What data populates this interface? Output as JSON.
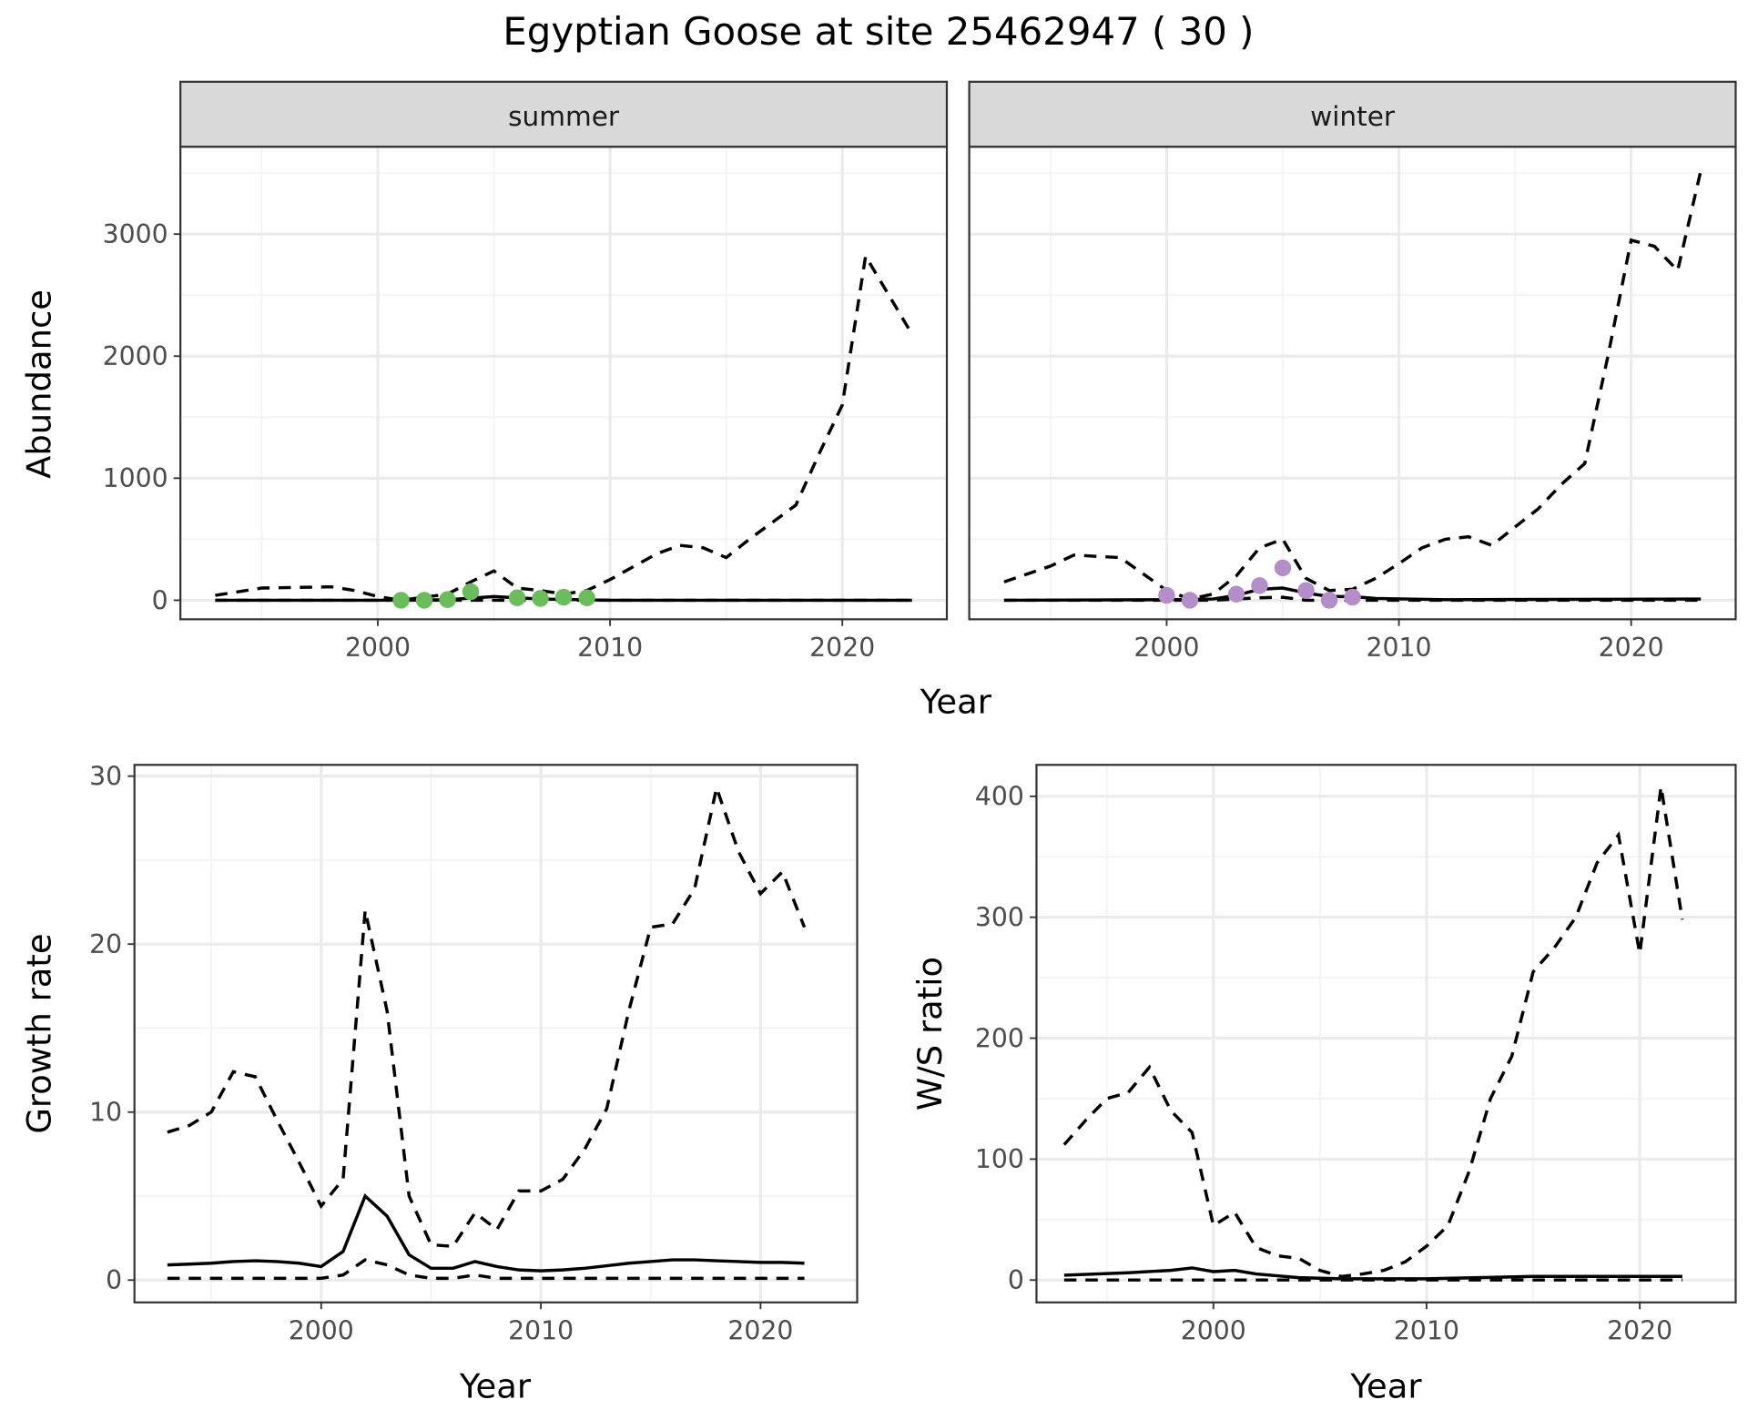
{
  "title": "Egyptian Goose at site 25462947 ( 30 )",
  "chart_data": [
    {
      "type": "line",
      "facet": "summer",
      "xlabel": "Year",
      "ylabel": "Abundance",
      "xlim": [
        1991.5,
        2024.5
      ],
      "ylim": [
        -156,
        3716
      ],
      "xticks": [
        2000,
        2010,
        2020
      ],
      "yticks": [
        0,
        1000,
        2000,
        3000
      ],
      "grid": true,
      "point_color": "#6abd5a",
      "upper": {
        "x": [
          1993,
          1995,
          1998,
          1999,
          2000,
          2001,
          2003,
          2004,
          2005,
          2006,
          2007,
          2008,
          2009,
          2010,
          2012,
          2013,
          2014,
          2015,
          2016,
          2018,
          2019,
          2020,
          2021,
          2022,
          2023
        ],
        "y": [
          40,
          100,
          110,
          80,
          30,
          0,
          50,
          150,
          240,
          100,
          80,
          50,
          80,
          170,
          380,
          450,
          430,
          350,
          500,
          780,
          1200,
          1600,
          2820,
          2500,
          2180
        ]
      },
      "estimate": {
        "x": [
          1993,
          2000,
          2003,
          2005,
          2007,
          2010,
          2023
        ],
        "y": [
          0,
          0,
          5,
          30,
          10,
          0,
          0
        ]
      },
      "lower": {
        "x": [
          1993,
          2023
        ],
        "y": [
          0,
          0
        ]
      },
      "observed": {
        "x": [
          2001,
          2002,
          2003,
          2004,
          2006,
          2007,
          2008,
          2009
        ],
        "y": [
          0,
          0,
          5,
          70,
          20,
          15,
          25,
          20
        ]
      }
    },
    {
      "type": "line",
      "facet": "winter",
      "xlabel": "Year",
      "ylabel": "Abundance",
      "xlim": [
        1991.5,
        2024.5
      ],
      "ylim": [
        -156,
        3716
      ],
      "xticks": [
        2000,
        2010,
        2020
      ],
      "yticks": [
        0,
        1000,
        2000,
        3000
      ],
      "grid": true,
      "point_color": "#b48ec8",
      "upper": {
        "x": [
          1993,
          1995,
          1996,
          1998,
          2000,
          2001,
          2002,
          2003,
          2004,
          2005,
          2006,
          2007,
          2008,
          2009,
          2010,
          2011,
          2012,
          2013,
          2014,
          2015,
          2016,
          2017,
          2018,
          2019,
          2020,
          2021,
          2022,
          2023
        ],
        "y": [
          150,
          280,
          370,
          350,
          80,
          10,
          50,
          200,
          430,
          500,
          180,
          80,
          90,
          180,
          300,
          430,
          500,
          520,
          450,
          600,
          750,
          950,
          1120,
          2000,
          2950,
          2900,
          2700,
          3520
        ]
      },
      "estimate": {
        "x": [
          1993,
          2000,
          2002,
          2003,
          2004,
          2005,
          2006,
          2007,
          2008,
          2009,
          2012,
          2023
        ],
        "y": [
          0,
          5,
          10,
          40,
          90,
          100,
          60,
          30,
          30,
          15,
          5,
          10
        ]
      },
      "lower": {
        "x": [
          1993,
          2002,
          2004,
          2005,
          2006,
          2023
        ],
        "y": [
          0,
          0,
          20,
          25,
          0,
          0
        ]
      },
      "observed": {
        "x": [
          2000,
          2001,
          2003,
          2004,
          2005,
          2006,
          2007,
          2008
        ],
        "y": [
          40,
          0,
          50,
          120,
          265,
          80,
          0,
          25
        ]
      }
    },
    {
      "type": "line",
      "xlabel": "Year",
      "ylabel": "Growth rate",
      "xlim": [
        1991.5,
        2024.4
      ],
      "ylim": [
        -1.33,
        30.67
      ],
      "xticks": [
        2000,
        2010,
        2020
      ],
      "yticks": [
        0,
        10,
        20,
        30
      ],
      "grid": true,
      "upper": {
        "x": [
          1993,
          1994,
          1995,
          1996,
          1997,
          1998,
          1999,
          2000,
          2001,
          2002,
          2003,
          2004,
          2005,
          2006,
          2007,
          2008,
          2009,
          2010,
          2011,
          2012,
          2013,
          2014,
          2015,
          2016,
          2017,
          2018,
          2019,
          2020,
          2021,
          2022
        ],
        "y": [
          8.8,
          9.2,
          10,
          12.4,
          12.1,
          9.5,
          7,
          4.4,
          6,
          22,
          16,
          5,
          2.1,
          2,
          4,
          3,
          5.3,
          5.3,
          6,
          7.8,
          10.2,
          16,
          21,
          21.2,
          23.3,
          29.3,
          25.5,
          23,
          24.3,
          21
        ]
      },
      "estimate": {
        "x": [
          1993,
          1994,
          1995,
          1996,
          1997,
          1998,
          1999,
          2000,
          2001,
          2002,
          2003,
          2004,
          2005,
          2006,
          2007,
          2008,
          2009,
          2010,
          2011,
          2012,
          2013,
          2014,
          2015,
          2016,
          2017,
          2018,
          2019,
          2020,
          2021,
          2022
        ],
        "y": [
          0.9,
          0.95,
          1.0,
          1.1,
          1.15,
          1.1,
          1.0,
          0.8,
          1.7,
          5,
          3.8,
          1.5,
          0.7,
          0.7,
          1.1,
          0.8,
          0.6,
          0.55,
          0.6,
          0.7,
          0.85,
          1.0,
          1.1,
          1.2,
          1.2,
          1.15,
          1.1,
          1.05,
          1.05,
          1.0
        ]
      },
      "lower": {
        "x": [
          1993,
          2000,
          2001,
          2002,
          2003,
          2004,
          2005,
          2006,
          2007,
          2008,
          2022
        ],
        "y": [
          0.1,
          0.1,
          0.3,
          1.2,
          0.9,
          0.3,
          0.1,
          0.1,
          0.3,
          0.1,
          0.1
        ]
      }
    },
    {
      "type": "line",
      "xlabel": "Year",
      "ylabel": "W/S ratio",
      "xlim": [
        1991.7,
        2024.5
      ],
      "ylim": [
        -18.5,
        426
      ],
      "xticks": [
        2000,
        2010,
        2020
      ],
      "yticks": [
        0,
        100,
        200,
        300,
        400
      ],
      "grid": true,
      "upper": {
        "x": [
          1993,
          1994,
          1995,
          1996,
          1997,
          1998,
          1999,
          2000,
          2001,
          2002,
          2003,
          2004,
          2005,
          2006,
          2007,
          2008,
          2009,
          2010,
          2011,
          2012,
          2013,
          2014,
          2015,
          2016,
          2017,
          2018,
          2019,
          2020,
          2021,
          2022
        ],
        "y": [
          112,
          132,
          150,
          155,
          176,
          140,
          122,
          45,
          56,
          27,
          20,
          18,
          8,
          3,
          5,
          8,
          15,
          28,
          45,
          90,
          150,
          185,
          255,
          275,
          300,
          345,
          368,
          270,
          408,
          298
        ]
      },
      "estimate": {
        "x": [
          1993,
          1996,
          1998,
          1999,
          2000,
          2001,
          2002,
          2004,
          2006,
          2010,
          2015,
          2022
        ],
        "y": [
          4,
          6,
          8,
          10,
          7,
          8,
          5,
          2,
          1,
          1,
          3,
          3
        ]
      },
      "lower": {
        "x": [
          1993,
          2022
        ],
        "y": [
          0,
          0
        ]
      }
    }
  ]
}
